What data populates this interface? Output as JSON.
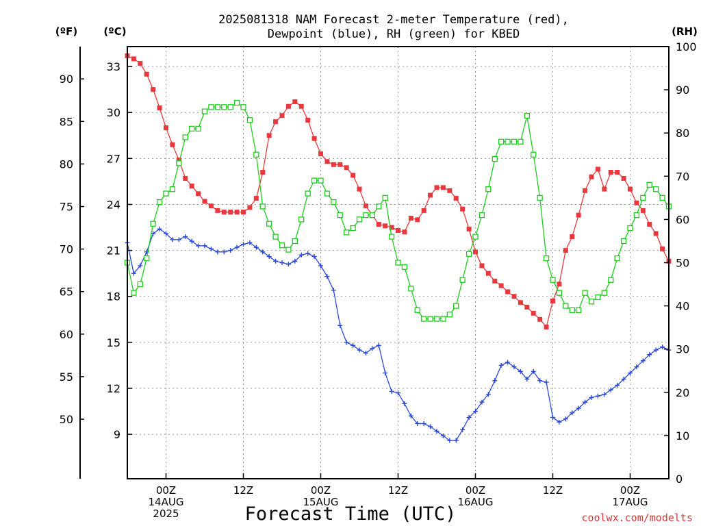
{
  "title_lines": [
    "2025081318 NAM Forecast 2-meter Temperature (red),",
    "Dewpoint (blue), RH (green) for KBED"
  ],
  "credit": "coolwx.com/modelts",
  "colors": {
    "temperature": "#e8383d",
    "dewpoint": "#2a48d8",
    "rh": "#1ecc1e",
    "grid": "#9a9a9a",
    "credit": "#d63a3a"
  },
  "chart_data": {
    "type": "line",
    "xlabel": "Forecast Time (UTC)",
    "x_unit": "forecast hour (0 = 2025081318)",
    "xlim": [
      0,
      84
    ],
    "x_ticks": [
      {
        "hour": 6,
        "lines": [
          "00Z",
          "14AUG",
          "2025"
        ]
      },
      {
        "hour": 18,
        "lines": [
          "12Z"
        ]
      },
      {
        "hour": 30,
        "lines": [
          "00Z",
          "15AUG"
        ]
      },
      {
        "hour": 42,
        "lines": [
          "12Z"
        ]
      },
      {
        "hour": 54,
        "lines": [
          "00Z",
          "16AUG"
        ]
      },
      {
        "hour": 66,
        "lines": [
          "12Z"
        ]
      },
      {
        "hour": 78,
        "lines": [
          "00Z",
          "17AUG"
        ]
      }
    ],
    "axes": {
      "fahrenheit": {
        "label": "(ºF)",
        "ticks": [
          50,
          55,
          60,
          65,
          70,
          75,
          80,
          85,
          90
        ],
        "ylim": [
          43.0,
          93.8
        ]
      },
      "celsius": {
        "label": "(ºC)",
        "ticks": [
          9,
          12,
          15,
          18,
          21,
          24,
          27,
          30,
          33
        ],
        "ylim": [
          6.1,
          34.3
        ]
      },
      "rh": {
        "label": "(RH)",
        "ticks": [
          0,
          10,
          20,
          30,
          40,
          50,
          60,
          70,
          80,
          90,
          100
        ],
        "ylim": [
          0,
          100
        ]
      }
    },
    "grid": true,
    "series": [
      {
        "name": "Temperature",
        "axis": "celsius",
        "marker": "filled-square",
        "color": "#e8383d",
        "x": [
          0,
          1,
          2,
          3,
          4,
          5,
          6,
          7,
          8,
          9,
          10,
          11,
          12,
          13,
          14,
          15,
          16,
          17,
          18,
          19,
          20,
          21,
          22,
          23,
          24,
          25,
          26,
          27,
          28,
          29,
          30,
          31,
          32,
          33,
          34,
          35,
          36,
          37,
          38,
          39,
          40,
          41,
          42,
          43,
          44,
          45,
          46,
          47,
          48,
          49,
          50,
          51,
          52,
          53,
          54,
          55,
          56,
          57,
          58,
          59,
          60,
          61,
          62,
          63,
          64,
          65,
          66,
          67,
          68,
          69,
          70,
          71,
          72,
          73,
          74,
          75,
          76,
          77,
          78,
          79,
          80,
          81,
          82,
          83,
          84
        ],
        "values": [
          33.7,
          33.5,
          33.2,
          32.5,
          31.5,
          30.3,
          29.0,
          27.9,
          26.9,
          25.7,
          25.2,
          24.7,
          24.2,
          23.9,
          23.6,
          23.5,
          23.5,
          23.5,
          23.5,
          23.8,
          24.4,
          26.1,
          28.5,
          29.4,
          29.8,
          30.4,
          30.7,
          30.4,
          29.5,
          28.3,
          27.3,
          26.8,
          26.6,
          26.6,
          26.4,
          25.9,
          25.0,
          23.9,
          23.3,
          22.7,
          22.6,
          22.5,
          22.3,
          22.2,
          23.1,
          23.0,
          23.6,
          24.6,
          25.1,
          25.1,
          24.9,
          24.4,
          23.7,
          22.4,
          20.9,
          20.0,
          19.5,
          19.0,
          18.7,
          18.3,
          18.0,
          17.6,
          17.3,
          16.9,
          16.5,
          16.0,
          17.7,
          18.8,
          21.0,
          21.9,
          23.3,
          24.9,
          25.8,
          26.3,
          25.0,
          26.1,
          26.1,
          25.7,
          25.0,
          24.1,
          23.6,
          22.7,
          22.1,
          21.1,
          20.3
        ]
      },
      {
        "name": "Dewpoint",
        "axis": "celsius",
        "marker": "plus",
        "color": "#2a48d8",
        "x": [
          0,
          1,
          2,
          3,
          4,
          5,
          6,
          7,
          8,
          9,
          10,
          11,
          12,
          13,
          14,
          15,
          16,
          17,
          18,
          19,
          20,
          21,
          22,
          23,
          24,
          25,
          26,
          27,
          28,
          29,
          30,
          31,
          32,
          33,
          34,
          35,
          36,
          37,
          38,
          39,
          40,
          41,
          42,
          43,
          44,
          45,
          46,
          47,
          48,
          49,
          50,
          51,
          52,
          53,
          54,
          55,
          56,
          57,
          58,
          59,
          60,
          61,
          62,
          63,
          64,
          65,
          66,
          67,
          68,
          69,
          70,
          71,
          72,
          73,
          74,
          75,
          76,
          77,
          78,
          79,
          80,
          81,
          82,
          83,
          84
        ],
        "values": [
          21.5,
          19.5,
          20.0,
          20.9,
          22.1,
          22.4,
          22.1,
          21.7,
          21.7,
          21.9,
          21.6,
          21.3,
          21.3,
          21.1,
          20.9,
          20.9,
          21.0,
          21.2,
          21.4,
          21.5,
          21.2,
          20.9,
          20.6,
          20.3,
          20.2,
          20.1,
          20.3,
          20.7,
          20.8,
          20.6,
          20.0,
          19.3,
          18.4,
          16.1,
          15.0,
          14.8,
          14.5,
          14.3,
          14.6,
          14.8,
          13.0,
          11.8,
          11.7,
          11.0,
          10.2,
          9.7,
          9.7,
          9.5,
          9.2,
          8.9,
          8.6,
          8.6,
          9.3,
          10.1,
          10.5,
          11.1,
          11.6,
          12.5,
          13.5,
          13.7,
          13.4,
          13.1,
          12.6,
          13.1,
          12.5,
          12.4,
          10.1,
          9.8,
          10.0,
          10.4,
          10.7,
          11.1,
          11.4,
          11.5,
          11.6,
          11.9,
          12.2,
          12.6,
          13.0,
          13.4,
          13.8,
          14.2,
          14.5,
          14.7,
          14.5
        ]
      },
      {
        "name": "RH",
        "axis": "rh",
        "marker": "open-square",
        "color": "#1ecc1e",
        "x": [
          0,
          1,
          2,
          3,
          4,
          5,
          6,
          7,
          8,
          9,
          10,
          11,
          12,
          13,
          14,
          15,
          16,
          17,
          18,
          19,
          20,
          21,
          22,
          23,
          24,
          25,
          26,
          27,
          28,
          29,
          30,
          31,
          32,
          33,
          34,
          35,
          36,
          37,
          38,
          39,
          40,
          41,
          42,
          43,
          44,
          45,
          46,
          47,
          48,
          49,
          50,
          51,
          52,
          53,
          54,
          55,
          56,
          57,
          58,
          59,
          60,
          61,
          62,
          63,
          64,
          65,
          66,
          67,
          68,
          69,
          70,
          71,
          72,
          73,
          74,
          75,
          76,
          77,
          78,
          79,
          80,
          81,
          82,
          83,
          84
        ],
        "values": [
          50,
          43,
          45,
          51,
          59,
          64,
          66,
          67,
          73,
          79,
          81,
          81,
          85,
          86,
          86,
          86,
          86,
          87,
          86,
          83,
          75,
          63,
          59,
          56,
          54,
          53,
          55,
          60,
          66,
          69,
          69,
          66,
          64,
          61,
          57,
          58,
          60,
          61,
          61,
          63,
          65,
          56,
          50,
          49,
          44,
          39,
          37,
          37,
          37,
          37,
          38,
          40,
          46,
          52,
          56,
          61,
          67,
          74,
          78,
          78,
          78,
          78,
          84,
          75,
          65,
          51,
          46,
          43,
          40,
          39,
          39,
          43,
          41,
          42,
          43,
          46,
          51,
          55,
          58,
          61,
          65,
          68,
          67,
          65,
          63
        ]
      }
    ]
  }
}
